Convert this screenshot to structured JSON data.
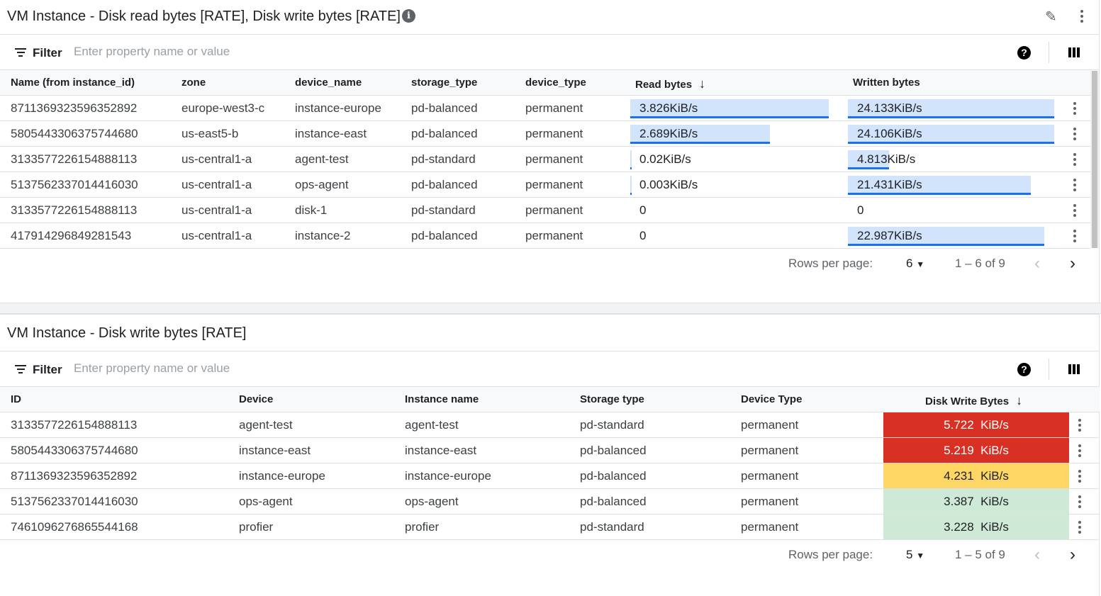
{
  "top": {
    "title": "VM Instance - Disk read bytes [RATE], Disk write bytes [RATE]",
    "filter_label": "Filter",
    "filter_placeholder": "Enter property name or value",
    "columns": [
      "Name (from instance_id)",
      "zone",
      "device_name",
      "storage_type",
      "device_type",
      "Read bytes",
      "Written bytes"
    ],
    "sort_column": "Read bytes",
    "rows": [
      {
        "name": "8711369323596352892",
        "zone": "europe-west3-c",
        "device": "instance-europe",
        "storage": "pd-balanced",
        "dtype": "permanent",
        "read": "3.826KiB/s",
        "read_val": 3.826,
        "write": "24.133KiB/s",
        "write_val": 24.133
      },
      {
        "name": "5805443306375744680",
        "zone": "us-east5-b",
        "device": "instance-east",
        "storage": "pd-balanced",
        "dtype": "permanent",
        "read": "2.689KiB/s",
        "read_val": 2.689,
        "write": "24.106KiB/s",
        "write_val": 24.106
      },
      {
        "name": "3133577226154888113",
        "zone": "us-central1-a",
        "device": "agent-test",
        "storage": "pd-standard",
        "dtype": "permanent",
        "read": "0.02KiB/s",
        "read_val": 0.02,
        "write": "4.813KiB/s",
        "write_val": 4.813
      },
      {
        "name": "5137562337014416030",
        "zone": "us-central1-a",
        "device": "ops-agent",
        "storage": "pd-balanced",
        "dtype": "permanent",
        "read": "0.003KiB/s",
        "read_val": 0.003,
        "write": "21.431KiB/s",
        "write_val": 21.431
      },
      {
        "name": "3133577226154888113",
        "zone": "us-central1-a",
        "device": "disk-1",
        "storage": "pd-standard",
        "dtype": "permanent",
        "read": "0",
        "read_val": 0,
        "write": "0",
        "write_val": 0
      },
      {
        "name": "417914296849281543",
        "zone": "us-central1-a",
        "device": "instance-2",
        "storage": "pd-balanced",
        "dtype": "permanent",
        "read": "0",
        "read_val": 0,
        "write": "22.987KiB/s",
        "write_val": 22.987
      }
    ],
    "rows_per_page_label": "Rows per page:",
    "rows_per_page": "6",
    "range": "1 – 6 of 9"
  },
  "bottom": {
    "title": "VM Instance - Disk write bytes [RATE]",
    "filter_label": "Filter",
    "filter_placeholder": "Enter property name or value",
    "columns": [
      "ID",
      "Device",
      "Instance name",
      "Storage type",
      "Device Type",
      "Disk Write Bytes"
    ],
    "sort_column": "Disk Write Bytes",
    "rows": [
      {
        "id": "3133577226154888113",
        "device": "agent-test",
        "instance": "agent-test",
        "storage": "pd-standard",
        "dtype": "permanent",
        "value": "5.722  KiB/s",
        "level": "high"
      },
      {
        "id": "5805443306375744680",
        "device": "instance-east",
        "instance": "instance-east",
        "storage": "pd-balanced",
        "dtype": "permanent",
        "value": "5.219  KiB/s",
        "level": "high"
      },
      {
        "id": "8711369323596352892",
        "device": "instance-europe",
        "instance": "instance-europe",
        "storage": "pd-balanced",
        "dtype": "permanent",
        "value": "4.231  KiB/s",
        "level": "medium"
      },
      {
        "id": "5137562337014416030",
        "device": "ops-agent",
        "instance": "ops-agent",
        "storage": "pd-balanced",
        "dtype": "permanent",
        "value": "3.387  KiB/s",
        "level": "low"
      },
      {
        "id": "7461096276865544168",
        "device": "profier",
        "instance": "profier",
        "storage": "pd-standard",
        "dtype": "permanent",
        "value": "3.228  KiB/s",
        "level": "low"
      }
    ],
    "rows_per_page_label": "Rows per page:",
    "rows_per_page": "5",
    "range": "1 – 5 of 9"
  },
  "colors": {
    "bar_fill": "#d2e3fc",
    "bar_line": "#1a73e8",
    "high": "#d93025",
    "medium": "#fdd663",
    "low": "#ceead6"
  }
}
